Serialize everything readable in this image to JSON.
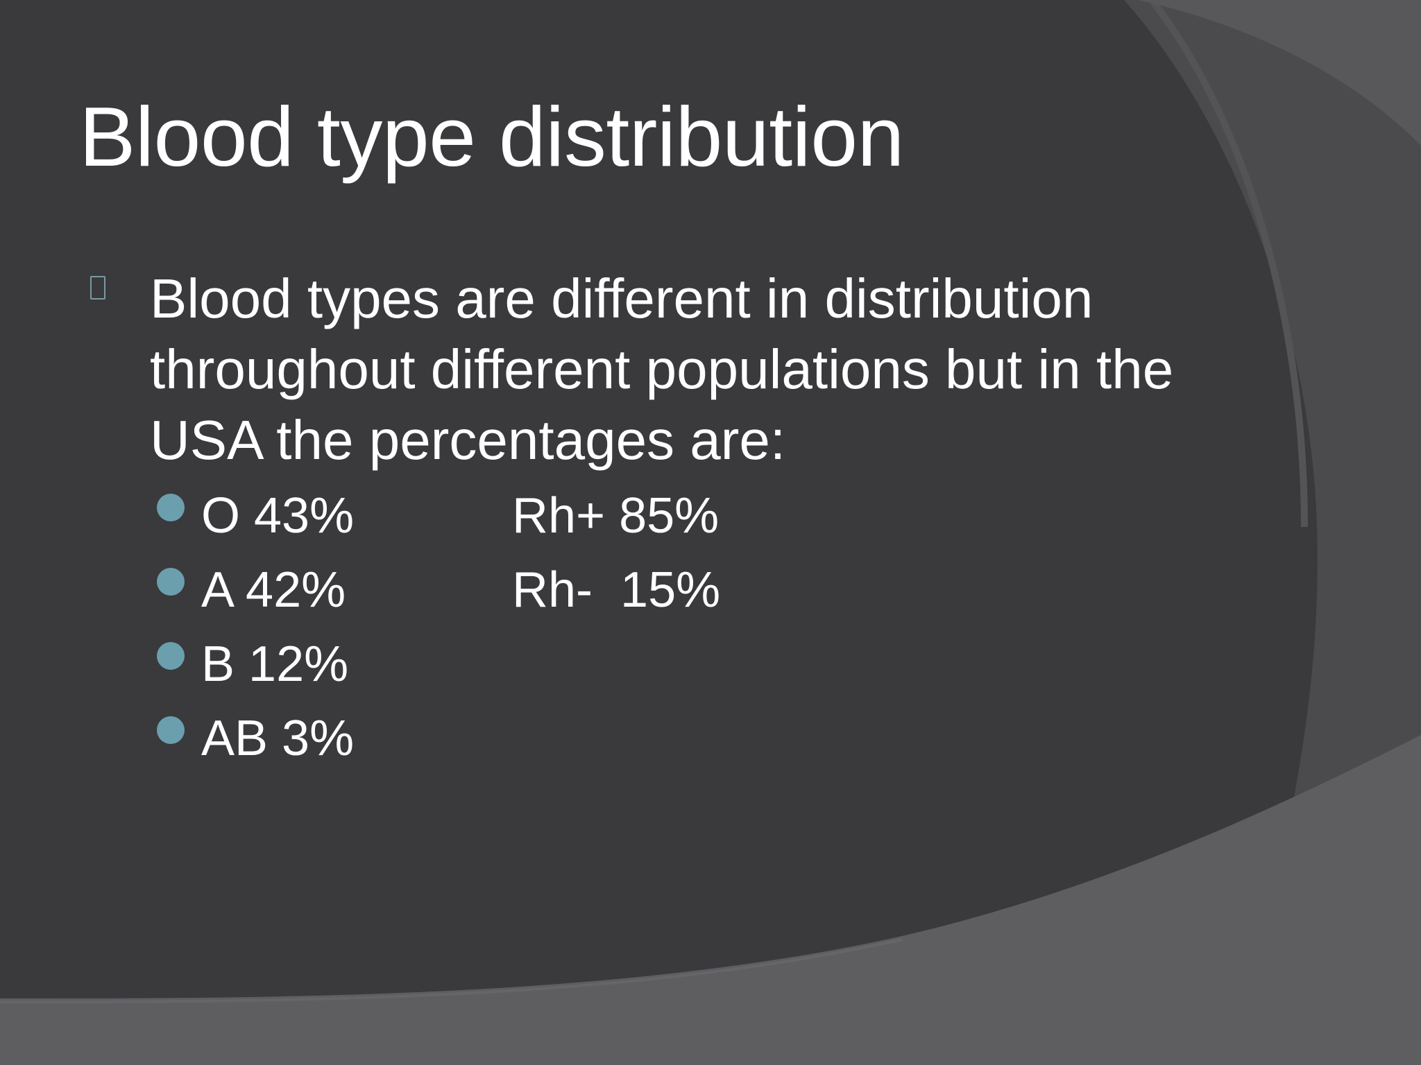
{
  "slide": {
    "title": "Blood type distribution",
    "intro": "Blood types are different in distribution throughout different populations but in the USA the percentages are:",
    "items": [
      {
        "label": "O 43%",
        "rh": "Rh+ 85%"
      },
      {
        "label": "A 42%",
        "rh": "Rh-  15%"
      },
      {
        "label": "B 12%",
        "rh": ""
      },
      {
        "label": "AB 3%",
        "rh": ""
      }
    ]
  },
  "colors": {
    "background": "#3a393c",
    "accent_shape": "#5a595c",
    "bullet_dot": "#6b9fae",
    "text": "#ffffff"
  },
  "icons": {
    "main_bullet": "square-bullet-icon",
    "sub_bullet": "circle-bullet-icon"
  }
}
